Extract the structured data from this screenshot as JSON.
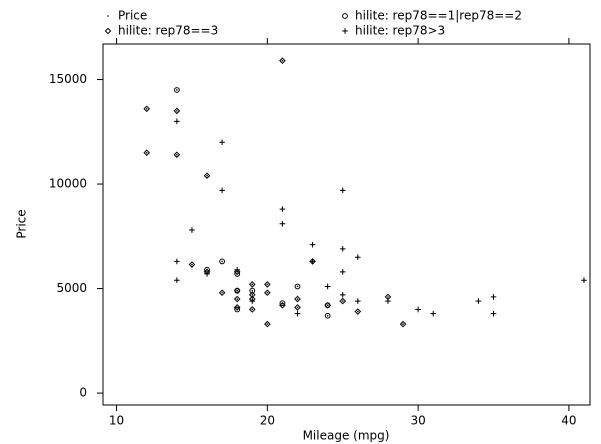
{
  "chart_data": {
    "type": "scatter",
    "x_label": "Mileage (mpg)",
    "y_label": "Price",
    "xlim": [
      9.1,
      41.4
    ],
    "ylim": [
      -570,
      16700
    ],
    "xticks": [
      10,
      20,
      30,
      40
    ],
    "yticks": [
      0,
      5000,
      10000,
      15000
    ],
    "grid": false,
    "legend": "top",
    "series": [
      {
        "name": "Price",
        "marker": "dot",
        "color": "#000000",
        "x": [
          12,
          12,
          14,
          14,
          15,
          16,
          16,
          17,
          18,
          18,
          18,
          18,
          19,
          19,
          19,
          19,
          20,
          20,
          20,
          21,
          22,
          22,
          23,
          24,
          25,
          26,
          28,
          29,
          21,
          14,
          16,
          17,
          18,
          18,
          19,
          21,
          22,
          24,
          24,
          18,
          14,
          14,
          14,
          15,
          17,
          17,
          16,
          18,
          19,
          21,
          21,
          22,
          23,
          23,
          24,
          25,
          25,
          25,
          25,
          26,
          26,
          28,
          30,
          31,
          34,
          35,
          35,
          41
        ],
        "y": [
          13600,
          11500,
          13500,
          11400,
          6150,
          10400,
          5800,
          4800,
          5800,
          4900,
          4500,
          4100,
          5200,
          4700,
          4500,
          4000,
          5200,
          4800,
          3300,
          4200,
          4500,
          4100,
          6300,
          4200,
          4400,
          3900,
          4600,
          3300,
          15900,
          14500,
          5900,
          6300,
          5700,
          4000,
          4900,
          4300,
          5100,
          4200,
          3700,
          4900,
          13000,
          6300,
          5400,
          7800,
          12000,
          9700,
          5700,
          5900,
          4400,
          8800,
          8100,
          3800,
          7100,
          6300,
          5100,
          9700,
          6900,
          5800,
          4700,
          6500,
          4400,
          4400,
          4000,
          3800,
          4400,
          4600,
          3800,
          5400
        ]
      },
      {
        "name": "hilite: rep78==1|rep78==2",
        "marker": "circle",
        "color": "#000000",
        "x": [
          14,
          16,
          17,
          18,
          18,
          19,
          21,
          22,
          24,
          24,
          18
        ],
        "y": [
          14500,
          5900,
          6300,
          5700,
          4000,
          4900,
          4300,
          5100,
          4200,
          3700,
          4900
        ]
      },
      {
        "name": "hilite: rep78==3",
        "marker": "diamond",
        "color": "#000000",
        "x": [
          12,
          12,
          14,
          14,
          15,
          16,
          16,
          17,
          18,
          18,
          18,
          18,
          19,
          19,
          19,
          19,
          20,
          20,
          20,
          21,
          22,
          22,
          23,
          24,
          25,
          26,
          28,
          29,
          21
        ],
        "y": [
          13600,
          11500,
          13500,
          11400,
          6150,
          10400,
          5800,
          4800,
          5800,
          4900,
          4500,
          4100,
          5200,
          4700,
          4500,
          4000,
          5200,
          4800,
          3300,
          4200,
          4500,
          4100,
          6300,
          4200,
          4400,
          3900,
          4600,
          3300,
          15900
        ]
      },
      {
        "name": "hilite: rep78>3",
        "marker": "plus",
        "color": "#000000",
        "x": [
          14,
          14,
          14,
          15,
          17,
          17,
          16,
          18,
          19,
          21,
          21,
          22,
          23,
          23,
          24,
          25,
          25,
          25,
          25,
          26,
          26,
          28,
          30,
          31,
          34,
          35,
          35,
          41
        ],
        "y": [
          13000,
          6300,
          5400,
          7800,
          12000,
          9700,
          5700,
          5900,
          4400,
          8800,
          8100,
          3800,
          7100,
          6300,
          5100,
          9700,
          6900,
          5800,
          4700,
          6500,
          4400,
          4400,
          4000,
          3800,
          4400,
          4600,
          3800,
          5400
        ]
      }
    ]
  }
}
